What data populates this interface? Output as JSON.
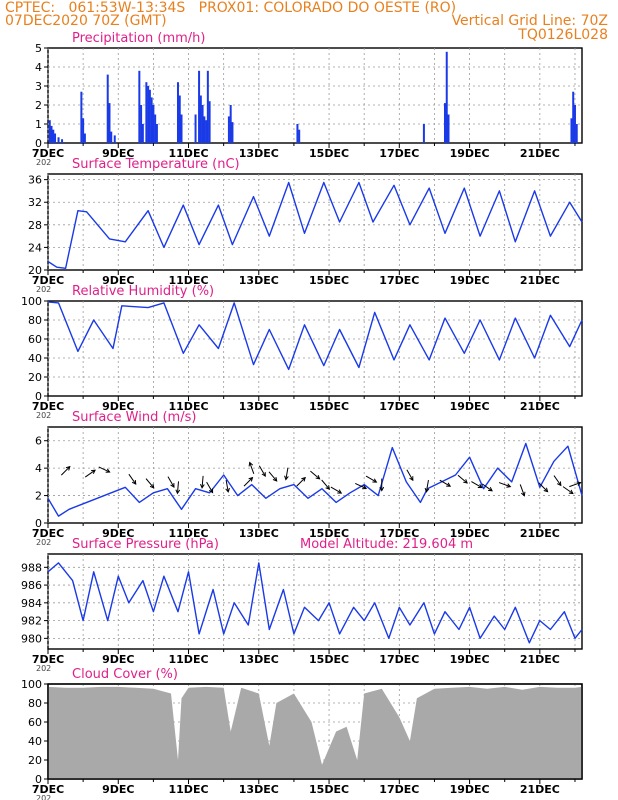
{
  "header": {
    "line1_left": "CPTEC:   061:53W-13:34S   PROX01: COLORADO DO OESTE (RO)",
    "line2_left": "07DEC2020 70Z (GMT)",
    "line2_right": "Vertical Grid Line: 70Z",
    "line3_right": "TQ0126L028"
  },
  "colors": {
    "header": "#e8801e",
    "title": "#e0208a",
    "series": "#1a3ae8",
    "cloud": "#a9a9a9",
    "arrow": "#000000",
    "grid": "#9a9a9a"
  },
  "x_labels": [
    "7DEC",
    "9DEC",
    "11DEC",
    "13DEC",
    "15DEC",
    "17DEC",
    "19DEC",
    "21DEC"
  ],
  "year_stub": "202",
  "chart_data": [
    {
      "id": "precip",
      "type": "bar",
      "title": "Precipitation  (mm/h)",
      "ylim": [
        0,
        5
      ],
      "yticks": [
        0,
        1,
        2,
        3,
        4,
        5
      ],
      "x_unit": "days since 7DEC 00Z",
      "x_range": [
        0,
        15.2
      ],
      "grid": true,
      "bars": [
        [
          0.05,
          1.2
        ],
        [
          0.1,
          0.9
        ],
        [
          0.15,
          0.7
        ],
        [
          0.2,
          0.5
        ],
        [
          0.3,
          0.3
        ],
        [
          0.4,
          0.2
        ],
        [
          0.95,
          2.7
        ],
        [
          1.0,
          1.3
        ],
        [
          1.05,
          0.5
        ],
        [
          1.7,
          3.6
        ],
        [
          1.75,
          2.1
        ],
        [
          1.8,
          0.6
        ],
        [
          1.9,
          0.4
        ],
        [
          2.6,
          3.8
        ],
        [
          2.65,
          2.0
        ],
        [
          2.7,
          1.0
        ],
        [
          2.8,
          3.2
        ],
        [
          2.85,
          3.0
        ],
        [
          2.9,
          2.8
        ],
        [
          2.95,
          2.4
        ],
        [
          3.0,
          2.0
        ],
        [
          3.05,
          1.5
        ],
        [
          3.1,
          1.0
        ],
        [
          3.7,
          3.2
        ],
        [
          3.75,
          2.5
        ],
        [
          3.8,
          1.5
        ],
        [
          4.2,
          1.5
        ],
        [
          4.3,
          3.8
        ],
        [
          4.35,
          2.5
        ],
        [
          4.4,
          2.0
        ],
        [
          4.45,
          1.4
        ],
        [
          4.5,
          1.2
        ],
        [
          4.55,
          3.8
        ],
        [
          4.6,
          2.2
        ],
        [
          5.15,
          1.4
        ],
        [
          5.2,
          2.0
        ],
        [
          5.25,
          1.1
        ],
        [
          7.1,
          1.0
        ],
        [
          7.15,
          0.7
        ],
        [
          10.7,
          1.0
        ],
        [
          11.3,
          2.1
        ],
        [
          11.35,
          4.8
        ],
        [
          11.4,
          1.5
        ],
        [
          14.9,
          1.3
        ],
        [
          14.95,
          2.7
        ],
        [
          15.0,
          2.0
        ],
        [
          15.05,
          1.0
        ]
      ]
    },
    {
      "id": "temp",
      "type": "line",
      "title": "Surface Temperature (nC)",
      "ylim": [
        20,
        37
      ],
      "yticks": [
        20,
        24,
        28,
        32,
        36
      ],
      "x_unit": "days since 7DEC 00Z",
      "x_range": [
        0,
        15.2
      ],
      "grid": true,
      "x": [
        0,
        0.25,
        0.5,
        0.85,
        1.1,
        1.75,
        2.2,
        2.85,
        3.3,
        3.85,
        4.3,
        4.85,
        5.25,
        5.85,
        6.3,
        6.85,
        7.3,
        7.85,
        8.3,
        8.85,
        9.25,
        9.85,
        10.3,
        10.85,
        11.3,
        11.85,
        12.3,
        12.85,
        13.3,
        13.85,
        14.3,
        14.85,
        15.2
      ],
      "values": [
        21.5,
        20.5,
        20.3,
        30.5,
        30.3,
        25.5,
        25.0,
        30.5,
        24.0,
        31.5,
        24.5,
        31.5,
        24.5,
        33.0,
        26.0,
        35.5,
        26.5,
        35.5,
        28.5,
        35.5,
        28.5,
        35.0,
        28.0,
        34.5,
        26.5,
        34.5,
        26.0,
        34.0,
        25.0,
        34.0,
        26.0,
        32.0,
        28.5
      ]
    },
    {
      "id": "rh",
      "type": "line",
      "title": "Relative Humidity (%)",
      "ylim": [
        0,
        100
      ],
      "yticks": [
        0,
        20,
        40,
        60,
        80,
        100
      ],
      "x_unit": "days since 7DEC 00Z",
      "x_range": [
        0,
        15.2
      ],
      "grid": true,
      "x": [
        0,
        0.3,
        0.85,
        1.3,
        1.85,
        2.1,
        2.85,
        3.3,
        3.85,
        4.3,
        4.85,
        5.3,
        5.85,
        6.3,
        6.85,
        7.3,
        7.85,
        8.3,
        8.85,
        9.3,
        9.85,
        10.3,
        10.85,
        11.3,
        11.85,
        12.3,
        12.85,
        13.3,
        13.85,
        14.3,
        14.85,
        15.2
      ],
      "values": [
        99,
        98,
        47,
        80,
        50,
        95,
        93,
        98,
        45,
        75,
        50,
        98,
        33,
        70,
        28,
        75,
        32,
        70,
        30,
        88,
        38,
        75,
        38,
        82,
        45,
        80,
        38,
        82,
        40,
        85,
        52,
        80
      ]
    },
    {
      "id": "wind",
      "type": "line",
      "title": "Surface Wind  (m/s)",
      "ylim": [
        0,
        7
      ],
      "yticks": [
        0,
        2,
        4,
        6
      ],
      "x_unit": "days since 7DEC 00Z",
      "x_range": [
        0,
        15.2
      ],
      "grid": true,
      "x": [
        0,
        0.3,
        0.6,
        1.0,
        1.4,
        1.8,
        2.2,
        2.6,
        3.0,
        3.4,
        3.8,
        4.2,
        4.6,
        5.0,
        5.4,
        5.8,
        6.2,
        6.6,
        7.0,
        7.4,
        7.8,
        8.2,
        8.6,
        9.0,
        9.4,
        9.8,
        10.2,
        10.6,
        10.8,
        11.2,
        11.6,
        12.0,
        12.4,
        12.8,
        13.2,
        13.6,
        14.0,
        14.4,
        14.8,
        15.2
      ],
      "values": [
        1.8,
        0.5,
        1.0,
        1.4,
        1.8,
        2.2,
        2.6,
        1.5,
        2.2,
        2.5,
        1.0,
        2.5,
        2.2,
        3.5,
        2.0,
        2.8,
        1.8,
        2.5,
        2.8,
        1.8,
        2.5,
        1.5,
        2.2,
        2.8,
        2.0,
        5.5,
        3.0,
        1.5,
        2.5,
        3.0,
        3.5,
        4.8,
        2.5,
        4.0,
        3.0,
        5.8,
        2.6,
        4.5,
        5.6,
        2.0
      ],
      "arrows": [
        [
          0.5,
          3.8,
          45
        ],
        [
          1.2,
          3.6,
          35
        ],
        [
          1.6,
          3.9,
          -25
        ],
        [
          2.4,
          3.2,
          -55
        ],
        [
          2.9,
          2.9,
          -50
        ],
        [
          3.5,
          3.0,
          -60
        ],
        [
          3.7,
          2.6,
          -95
        ],
        [
          4.4,
          3.0,
          -95
        ],
        [
          4.6,
          2.6,
          -60
        ],
        [
          5.1,
          2.7,
          -80
        ],
        [
          5.7,
          3.0,
          45
        ],
        [
          5.8,
          4.0,
          110
        ],
        [
          6.1,
          3.8,
          -60
        ],
        [
          6.4,
          3.4,
          -50
        ],
        [
          6.8,
          3.6,
          -100
        ],
        [
          7.2,
          3.0,
          45
        ],
        [
          7.6,
          3.5,
          -40
        ],
        [
          7.9,
          2.8,
          -50
        ],
        [
          8.2,
          2.4,
          -30
        ],
        [
          8.9,
          2.7,
          -25
        ],
        [
          9.2,
          3.2,
          -30
        ],
        [
          9.5,
          2.8,
          -90
        ],
        [
          10.3,
          3.5,
          -60
        ],
        [
          10.8,
          2.7,
          -100
        ],
        [
          11.3,
          2.9,
          -30
        ],
        [
          11.8,
          3.2,
          -40
        ],
        [
          12.2,
          2.8,
          -30
        ],
        [
          12.5,
          2.6,
          -35
        ],
        [
          13.0,
          2.8,
          -20
        ],
        [
          13.5,
          2.4,
          -70
        ],
        [
          14.1,
          2.6,
          -45
        ],
        [
          14.5,
          3.1,
          -55
        ],
        [
          14.8,
          2.4,
          -35
        ],
        [
          15.0,
          2.8,
          20
        ]
      ]
    },
    {
      "id": "pres",
      "type": "line",
      "title": "Surface Pressure (hPa)",
      "annotation": "Model Altitude: 219.604  m",
      "ylim": [
        978.8,
        989.5
      ],
      "yticks": [
        980,
        982,
        984,
        986,
        988
      ],
      "x_unit": "days since 7DEC 00Z",
      "x_range": [
        0,
        15.2
      ],
      "grid": true,
      "x": [
        0,
        0.3,
        0.7,
        1.0,
        1.3,
        1.7,
        2.0,
        2.3,
        2.7,
        3.0,
        3.3,
        3.7,
        4.0,
        4.3,
        4.7,
        5.0,
        5.3,
        5.7,
        6.0,
        6.3,
        6.7,
        7.0,
        7.3,
        7.7,
        8.0,
        8.3,
        8.7,
        9.0,
        9.3,
        9.7,
        10.0,
        10.3,
        10.7,
        11.0,
        11.3,
        11.7,
        12.0,
        12.3,
        12.7,
        13.0,
        13.3,
        13.7,
        14.0,
        14.3,
        14.7,
        15.0,
        15.2
      ],
      "values": [
        987.5,
        988.5,
        986.5,
        982.0,
        987.5,
        982.0,
        987.0,
        984.0,
        986.5,
        983.0,
        987.0,
        983.0,
        987.5,
        980.5,
        985.5,
        980.5,
        984.0,
        981.5,
        988.5,
        981.0,
        985.5,
        980.5,
        983.5,
        982.0,
        984.0,
        980.5,
        983.5,
        982.0,
        984.0,
        980.0,
        983.5,
        981.5,
        984.0,
        980.5,
        983.0,
        981.0,
        983.5,
        980.0,
        982.5,
        981.0,
        983.5,
        979.5,
        982.0,
        981.0,
        983.0,
        980.0,
        981.0
      ]
    },
    {
      "id": "cloud",
      "type": "area",
      "title": "Cloud Cover (%)",
      "ylim": [
        0,
        100
      ],
      "yticks": [
        0,
        20,
        40,
        60,
        80,
        100
      ],
      "x_unit": "days since 7DEC 00Z",
      "x_range": [
        0,
        15.2
      ],
      "grid": true,
      "x": [
        0,
        0.5,
        1.0,
        1.5,
        2.0,
        2.5,
        3.0,
        3.5,
        3.7,
        3.8,
        4.0,
        4.5,
        5.0,
        5.2,
        5.5,
        6.0,
        6.3,
        6.5,
        7.0,
        7.5,
        7.8,
        8.2,
        8.5,
        8.8,
        9.0,
        9.5,
        10.0,
        10.3,
        10.5,
        11.0,
        11.5,
        12.0,
        12.5,
        13.0,
        13.5,
        14.0,
        14.5,
        15.0,
        15.2
      ],
      "values": [
        97,
        96,
        96,
        97,
        97,
        96,
        95,
        90,
        20,
        85,
        96,
        97,
        96,
        50,
        96,
        90,
        35,
        80,
        90,
        60,
        15,
        50,
        55,
        20,
        90,
        95,
        65,
        40,
        85,
        95,
        96,
        97,
        95,
        97,
        94,
        97,
        96,
        96,
        97
      ]
    }
  ]
}
